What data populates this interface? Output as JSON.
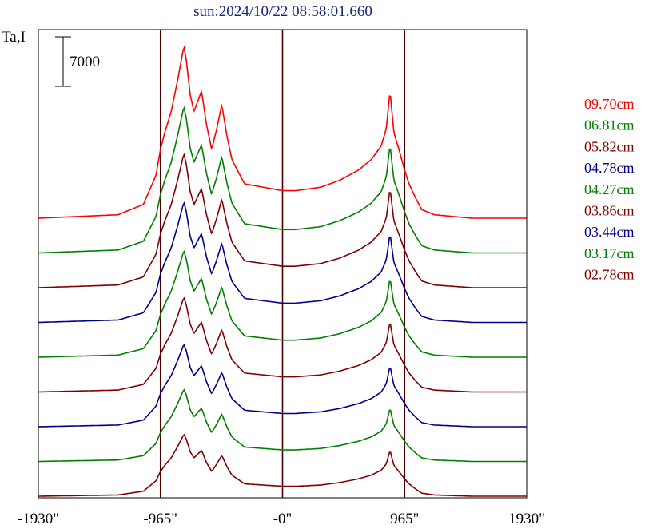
{
  "chart_data": {
    "type": "line",
    "title": "sun:2024/10/22 08:58:01.660",
    "title_color": "#1a237e",
    "ylabel": "Ta,I",
    "scale_bar_label": "7000",
    "xlim": [
      -1930,
      1930
    ],
    "x_ticks": [
      -1930,
      -965,
      0,
      965,
      1930
    ],
    "x_tick_labels": [
      "-1930\"",
      "-965\"",
      "-0\"",
      "965\"",
      "1930\""
    ],
    "limb_lines": [
      -965,
      0,
      965
    ],
    "grid": false,
    "legend_position": "right",
    "series": [
      {
        "name": "09.70cm",
        "color": "#ff0000",
        "amp": 1.0
      },
      {
        "name": "06.81cm",
        "color": "#008000",
        "amp": 0.85
      },
      {
        "name": "05.82cm",
        "color": "#800000",
        "amp": 0.78
      },
      {
        "name": "04.78cm",
        "color": "#00008b",
        "amp": 0.7
      },
      {
        "name": "04.27cm",
        "color": "#008000",
        "amp": 0.62
      },
      {
        "name": "03.86cm",
        "color": "#800000",
        "amp": 0.55
      },
      {
        "name": "03.44cm",
        "color": "#00008b",
        "amp": 0.48
      },
      {
        "name": "03.17cm",
        "color": "#008000",
        "amp": 0.42
      },
      {
        "name": "02.78cm",
        "color": "#800000",
        "amp": 0.36
      }
    ],
    "profile_x": [
      -1930,
      -1300,
      -1100,
      -1000,
      -965,
      -930,
      -880,
      -830,
      -780,
      -760,
      -730,
      -700,
      -640,
      -600,
      -560,
      -520,
      -480,
      -440,
      -400,
      -300,
      -150,
      0,
      100,
      300,
      450,
      600,
      700,
      780,
      820,
      850,
      880,
      920,
      965,
      1000,
      1050,
      1100,
      1200,
      1500,
      1930
    ],
    "profile_y": [
      0,
      0.02,
      0.08,
      0.25,
      0.4,
      0.5,
      0.62,
      0.8,
      1.0,
      0.92,
      0.72,
      0.62,
      0.74,
      0.54,
      0.4,
      0.52,
      0.66,
      0.48,
      0.34,
      0.2,
      0.18,
      0.16,
      0.16,
      0.18,
      0.22,
      0.28,
      0.34,
      0.42,
      0.52,
      0.74,
      0.5,
      0.4,
      0.28,
      0.2,
      0.12,
      0.05,
      0.02,
      0,
      0
    ]
  }
}
